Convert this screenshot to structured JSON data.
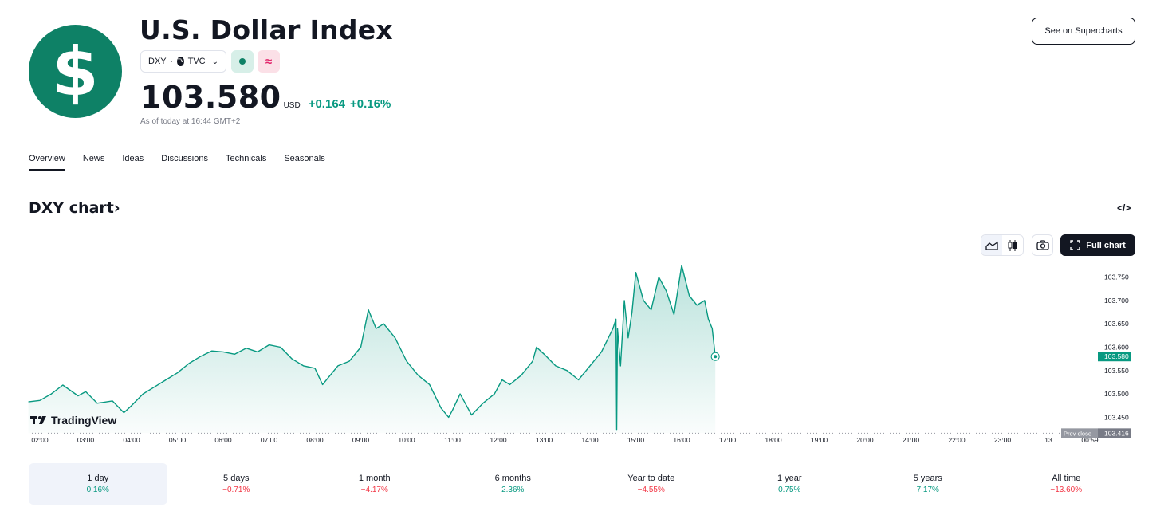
{
  "header": {
    "logo_symbol": "$",
    "title": "U.S. Dollar Index",
    "symbol": "DXY",
    "separator": "·",
    "exchange": "TVC",
    "market_open_icon": "green-dot-icon",
    "delayed_icon": "approx-icon",
    "delayed_glyph": "≈",
    "price": "103.580",
    "currency": "USD",
    "change_abs": "+0.164",
    "change_pct": "+0.16%",
    "as_of": "As of today at 16:44 GMT+2",
    "supercharts_label": "See on Supercharts"
  },
  "tabs": [
    {
      "label": "Overview",
      "active": true
    },
    {
      "label": "News"
    },
    {
      "label": "Ideas"
    },
    {
      "label": "Discussions"
    },
    {
      "label": "Technicals"
    },
    {
      "label": "Seasonals"
    }
  ],
  "chart_section": {
    "title": "DXY chart",
    "title_chevron": "›",
    "embed_icon": "</>",
    "full_chart_label": "Full chart",
    "brand": "TradingView"
  },
  "chart_data": {
    "type": "area",
    "color": "#089981",
    "x_ticks": [
      "02:00",
      "03:00",
      "04:00",
      "05:00",
      "06:00",
      "07:00",
      "08:00",
      "09:00",
      "10:00",
      "11:00",
      "12:00",
      "13:00",
      "14:00",
      "15:00",
      "16:00",
      "17:00",
      "18:00",
      "19:00",
      "20:00",
      "21:00",
      "22:00",
      "23:00",
      "13",
      "00:59"
    ],
    "y_ticks": [
      "103.750",
      "103.700",
      "103.650",
      "103.600",
      "103.550",
      "103.500",
      "103.450"
    ],
    "ylim": [
      103.42,
      103.78
    ],
    "last_value": "103.580",
    "prev_close_label": "Prev close",
    "prev_close_value": "103.416",
    "prev_close": 103.416,
    "series": [
      {
        "x": [
          "01:45",
          "02:00",
          "02:15",
          "02:30",
          "02:50",
          "03:00",
          "03:15",
          "03:35",
          "03:50",
          "04:00",
          "04:15",
          "04:30",
          "04:45",
          "05:00",
          "05:15",
          "05:30",
          "05:45",
          "06:00",
          "06:15",
          "06:30",
          "06:45",
          "07:00",
          "07:15",
          "07:30",
          "07:45",
          "08:00",
          "08:10",
          "08:30",
          "08:45",
          "09:00",
          "09:10",
          "09:20",
          "09:30",
          "09:45",
          "10:00",
          "10:15",
          "10:30",
          "10:45",
          "10:55",
          "11:00",
          "11:10",
          "11:25",
          "11:40",
          "11:55",
          "12:05",
          "12:15",
          "12:30",
          "12:45",
          "12:50",
          "13:00",
          "13:15",
          "13:30",
          "13:45",
          "14:00",
          "14:15",
          "14:30",
          "14:34",
          "14:35",
          "14:36",
          "14:40",
          "14:45",
          "14:50",
          "14:55",
          "15:00",
          "15:10",
          "15:20",
          "15:30",
          "15:40",
          "15:50",
          "16:00",
          "16:10",
          "16:20",
          "16:30",
          "16:35",
          "16:40",
          "16:44"
        ],
        "values": [
          103.483,
          103.486,
          103.5,
          103.519,
          103.496,
          103.505,
          103.48,
          103.485,
          103.46,
          103.475,
          103.5,
          103.515,
          103.53,
          103.545,
          103.565,
          103.58,
          103.592,
          103.59,
          103.585,
          103.598,
          103.59,
          103.605,
          103.6,
          103.575,
          103.56,
          103.555,
          103.52,
          103.56,
          103.57,
          103.6,
          103.68,
          103.64,
          103.65,
          103.62,
          103.57,
          103.54,
          103.52,
          103.47,
          103.45,
          103.465,
          103.5,
          103.455,
          103.48,
          103.5,
          103.53,
          103.52,
          103.54,
          103.57,
          103.6,
          103.585,
          103.56,
          103.55,
          103.53,
          103.56,
          103.59,
          103.64,
          103.66,
          103.424,
          103.64,
          103.56,
          103.7,
          103.62,
          103.675,
          103.76,
          103.7,
          103.68,
          103.75,
          103.72,
          103.67,
          103.775,
          103.71,
          103.69,
          103.7,
          103.66,
          103.64,
          103.58
        ]
      }
    ]
  },
  "periods": [
    {
      "label": "1 day",
      "value": "0.16%",
      "dir": "pos",
      "active": true
    },
    {
      "label": "5 days",
      "value": "−0.71%",
      "dir": "neg"
    },
    {
      "label": "1 month",
      "value": "−4.17%",
      "dir": "neg"
    },
    {
      "label": "6 months",
      "value": "2.36%",
      "dir": "pos"
    },
    {
      "label": "Year to date",
      "value": "−4.55%",
      "dir": "neg"
    },
    {
      "label": "1 year",
      "value": "0.75%",
      "dir": "pos"
    },
    {
      "label": "5 years",
      "value": "7.17%",
      "dir": "pos"
    },
    {
      "label": "All time",
      "value": "−13.60%",
      "dir": "neg"
    }
  ]
}
